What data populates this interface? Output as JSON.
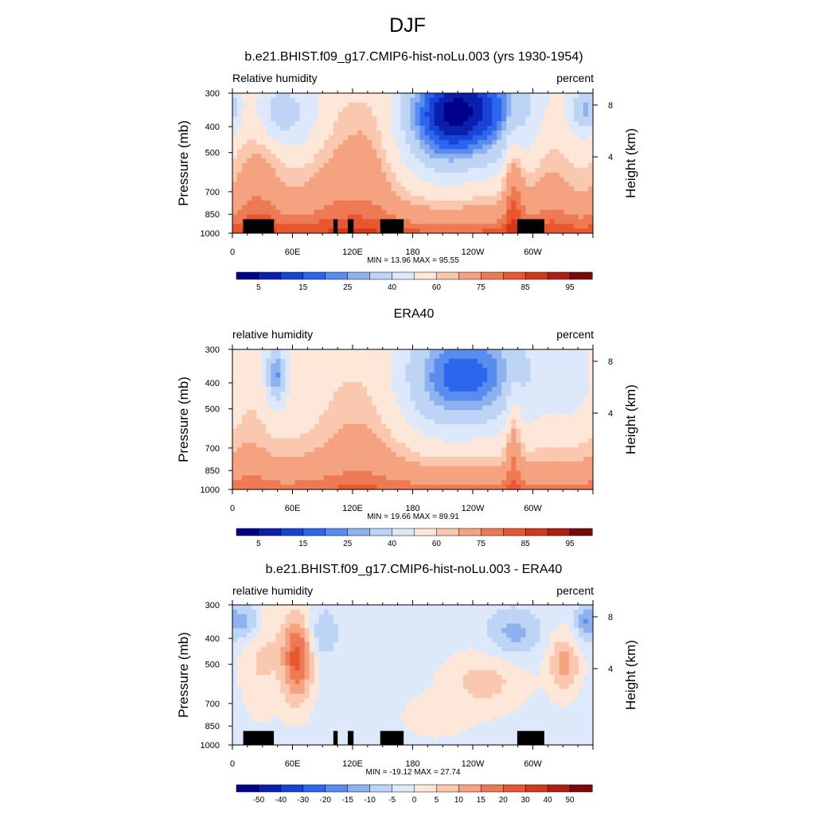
{
  "figure": {
    "title": "DJF"
  },
  "colors": {
    "rh_levels": [
      "#00008a",
      "#0a1fad",
      "#1743d6",
      "#2c66ed",
      "#5a8cef",
      "#8eb1ef",
      "#bdd4f5",
      "#dde9fb",
      "#fde7d8",
      "#f9c8ae",
      "#f4a27f",
      "#ee7a55",
      "#e8572f",
      "#d3381b",
      "#b01f12",
      "#7a0a0a"
    ],
    "diff_levels": [
      "#00008a",
      "#0a1fad",
      "#1743d6",
      "#2c66ed",
      "#5a8cef",
      "#8eb1ef",
      "#bdd4f5",
      "#dde9fb",
      "#fde7d8",
      "#f9c8ae",
      "#f4a27f",
      "#ee7a55",
      "#e8572f",
      "#d3381b",
      "#b01f12",
      "#7a0a0a"
    ],
    "mask": "#000000"
  },
  "chart_data": [
    {
      "type": "heatmap",
      "title": "b.e21.BHIST.f09_g17.CMIP6-hist-noLu.003 (yrs 1930-1954)",
      "left_label": "Relative humidity",
      "right_label": "percent",
      "ylabel": "Pressure (mb)",
      "y2label": "Height (km)",
      "x_ticks": [
        "0",
        "60E",
        "120E",
        "180",
        "120W",
        "60W"
      ],
      "y_ticks": [
        "300",
        "400",
        "500",
        "700",
        "850",
        "1000"
      ],
      "y2_ticks": [
        "8",
        "4"
      ],
      "stats": "MIN =  13.96  MAX =  95.55",
      "colorbar_labels": [
        "5",
        "15",
        "25",
        "40",
        "60",
        "75",
        "85",
        "95"
      ],
      "min": 13.96,
      "max": 95.55
    },
    {
      "type": "heatmap",
      "title": "ERA40",
      "left_label": "relative humidity",
      "right_label": "percent",
      "ylabel": "Pressure (mb)",
      "y2label": "Height (km)",
      "x_ticks": [
        "0",
        "60E",
        "120E",
        "180",
        "120W",
        "60W"
      ],
      "y_ticks": [
        "300",
        "400",
        "500",
        "700",
        "850",
        "1000"
      ],
      "y2_ticks": [
        "8",
        "4"
      ],
      "stats": "MIN =  19.66  MAX =  89.91",
      "colorbar_labels": [
        "5",
        "15",
        "25",
        "40",
        "60",
        "75",
        "85",
        "95"
      ],
      "min": 19.66,
      "max": 89.91
    },
    {
      "type": "heatmap",
      "title": "b.e21.BHIST.f09_g17.CMIP6-hist-noLu.003 - ERA40",
      "left_label": "relative humidity",
      "right_label": "percent",
      "ylabel": "Pressure (mb)",
      "y2label": "Height (km)",
      "x_ticks": [
        "0",
        "60E",
        "120E",
        "180",
        "120W",
        "60W"
      ],
      "y_ticks": [
        "300",
        "400",
        "500",
        "700",
        "850",
        "1000"
      ],
      "y2_ticks": [
        "8",
        "4"
      ],
      "stats": "MIN = -19.12  MAX =  27.74",
      "colorbar_labels": [
        "-50",
        "-40",
        "-30",
        "-20",
        "-15",
        "-10",
        "-5",
        "0",
        "5",
        "10",
        "15",
        "20",
        "30",
        "40",
        "50"
      ],
      "min": -19.12,
      "max": 27.74
    }
  ]
}
